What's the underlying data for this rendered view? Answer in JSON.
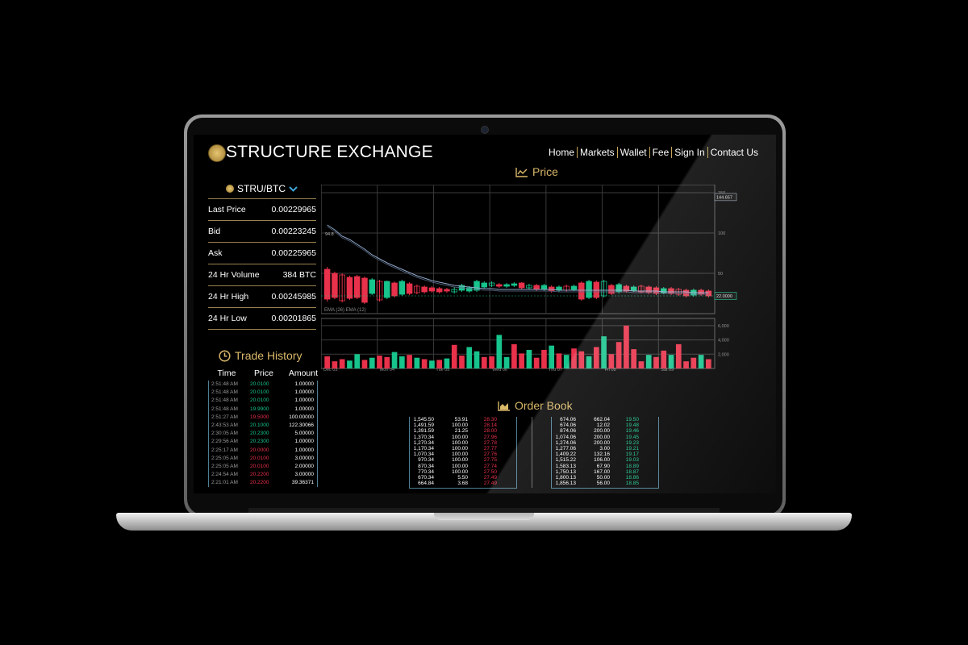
{
  "header": {
    "brand": "STRUCTURE EXCHANGE",
    "nav": [
      "Home",
      "Markets",
      "Wallet",
      "Fee",
      "Sign In",
      "Contact Us"
    ]
  },
  "pair": {
    "label": "STRU/BTC"
  },
  "stats": [
    {
      "label": "Last Price",
      "value": "0.00229965"
    },
    {
      "label": "Bid",
      "value": "0.00223245"
    },
    {
      "label": "Ask",
      "value": "0.00225965"
    },
    {
      "label": "24 Hr Volume",
      "value": "384 BTC"
    },
    {
      "label": "24 Hr High",
      "value": "0.00245985"
    },
    {
      "label": "24 Hr Low",
      "value": "0.00201865"
    }
  ],
  "price_title": "Price",
  "trade_history": {
    "title": "Trade History",
    "headers": [
      "Time",
      "Price",
      "Amount"
    ],
    "rows": [
      {
        "time": "2:51:48 AM",
        "price": "20.0100",
        "amount": "1.00000",
        "side": "buy"
      },
      {
        "time": "2:51:48 AM",
        "price": "20.0100",
        "amount": "1.00000",
        "side": "buy"
      },
      {
        "time": "2:51:48 AM",
        "price": "20.0100",
        "amount": "1.00000",
        "side": "buy"
      },
      {
        "time": "2:51:48 AM",
        "price": "19.9900",
        "amount": "1.00000",
        "side": "buy"
      },
      {
        "time": "2:51:27 AM",
        "price": "19.5000",
        "amount": "100.00000",
        "side": "sell"
      },
      {
        "time": "2:43:53 AM",
        "price": "20.1000",
        "amount": "122.30066",
        "side": "buy"
      },
      {
        "time": "2:30:05 AM",
        "price": "20.2300",
        "amount": "5.00000",
        "side": "buy"
      },
      {
        "time": "2:29:56 AM",
        "price": "20.2300",
        "amount": "1.00000",
        "side": "buy"
      },
      {
        "time": "2:25:17 AM",
        "price": "20.0000",
        "amount": "1.00000",
        "side": "sell"
      },
      {
        "time": "2:25:05 AM",
        "price": "20.0100",
        "amount": "3.00000",
        "side": "sell"
      },
      {
        "time": "2:25:05 AM",
        "price": "20.0100",
        "amount": "2.00000",
        "side": "sell"
      },
      {
        "time": "2:24:54 AM",
        "price": "20.2200",
        "amount": "3.00000",
        "side": "sell"
      },
      {
        "time": "2:21:01 AM",
        "price": "20.2200",
        "amount": "39.36371",
        "side": "sell"
      }
    ]
  },
  "order_book": {
    "title": "Order Book",
    "sell": [
      [
        "1,545.50",
        "53.91",
        "28.30"
      ],
      [
        "1,491.59",
        "100.00",
        "28.14"
      ],
      [
        "1,391.59",
        "21.25",
        "28.00"
      ],
      [
        "1,370.34",
        "100.00",
        "27.96"
      ],
      [
        "1,270.34",
        "100.00",
        "27.78"
      ],
      [
        "1,170.34",
        "100.00",
        "27.77"
      ],
      [
        "1,070.34",
        "100.00",
        "27.76"
      ],
      [
        "970.34",
        "100.00",
        "27.75"
      ],
      [
        "870.34",
        "100.00",
        "27.74"
      ],
      [
        "770.34",
        "100.00",
        "27.50"
      ],
      [
        "670.34",
        "5.50",
        "27.49"
      ],
      [
        "664.84",
        "3.68",
        "27.49"
      ]
    ],
    "buy": [
      [
        "674.06",
        "662.04",
        "19.50"
      ],
      [
        "674.06",
        "12.02",
        "19.48"
      ],
      [
        "874.06",
        "200.00",
        "19.46"
      ],
      [
        "1,074.06",
        "200.00",
        "19.45"
      ],
      [
        "1,274.06",
        "200.00",
        "19.23"
      ],
      [
        "1,277.06",
        "3.00",
        "19.21"
      ],
      [
        "1,409.22",
        "132.16",
        "19.17"
      ],
      [
        "1,515.22",
        "106.00",
        "19.03"
      ],
      [
        "1,583.13",
        "67.90",
        "18.89"
      ],
      [
        "1,750.13",
        "167.00",
        "18.87"
      ],
      [
        "1,800.13",
        "50.00",
        "18.86"
      ],
      [
        "1,856.13",
        "56.00",
        "18.85"
      ]
    ]
  },
  "chart_data": {
    "type": "bar",
    "title": "Price",
    "price_axis_ticks": [
      "150",
      "100",
      "50"
    ],
    "price_labels": {
      "last": "144.657",
      "current": "22.0000",
      "ema_start": "94.8"
    },
    "legend": "EMA (26) EMA (12)",
    "volume_axis_ticks": [
      "6,000",
      "4,000",
      "2,000"
    ],
    "x_labels": [
      "Dec 03",
      "Mon 04",
      "Tue 05",
      "Wed 06",
      "Thu 07",
      "Fri 08",
      "Sat 09"
    ],
    "ylim_price": [
      0,
      160
    ],
    "ylim_volume": [
      0,
      7000
    ],
    "candles": [
      {
        "o": 55,
        "c": 18,
        "h": 58,
        "l": 15
      },
      {
        "o": 50,
        "c": 20,
        "h": 52,
        "l": 18
      },
      {
        "o": 48,
        "c": 16,
        "h": 50,
        "l": 14
      },
      {
        "o": 45,
        "c": 19,
        "h": 47,
        "l": 17
      },
      {
        "o": 46,
        "c": 20,
        "h": 48,
        "l": 18
      },
      {
        "o": 44,
        "c": 14,
        "h": 46,
        "l": 12
      },
      {
        "o": 25,
        "c": 42,
        "h": 44,
        "l": 23
      },
      {
        "o": 40,
        "c": 17,
        "h": 42,
        "l": 15
      },
      {
        "o": 20,
        "c": 40,
        "h": 41,
        "l": 18
      },
      {
        "o": 38,
        "c": 22,
        "h": 40,
        "l": 20
      },
      {
        "o": 24,
        "c": 40,
        "h": 42,
        "l": 22
      },
      {
        "o": 37,
        "c": 25,
        "h": 39,
        "l": 23
      },
      {
        "o": 34,
        "c": 26,
        "h": 36,
        "l": 24
      },
      {
        "o": 33,
        "c": 27,
        "h": 35,
        "l": 25
      },
      {
        "o": 32,
        "c": 28,
        "h": 34,
        "l": 26
      },
      {
        "o": 31,
        "c": 27,
        "h": 33,
        "l": 25
      },
      {
        "o": 30,
        "c": 28,
        "h": 32,
        "l": 26
      },
      {
        "o": 27,
        "c": 30,
        "h": 33,
        "l": 25
      },
      {
        "o": 29,
        "c": 35,
        "h": 37,
        "l": 27
      },
      {
        "o": 28,
        "c": 32,
        "h": 34,
        "l": 26
      },
      {
        "o": 29,
        "c": 40,
        "h": 42,
        "l": 27
      },
      {
        "o": 33,
        "c": 38,
        "h": 40,
        "l": 31
      },
      {
        "o": 35,
        "c": 38,
        "h": 40,
        "l": 33
      },
      {
        "o": 36,
        "c": 34,
        "h": 38,
        "l": 32
      },
      {
        "o": 34,
        "c": 36,
        "h": 38,
        "l": 32
      },
      {
        "o": 35,
        "c": 37,
        "h": 39,
        "l": 33
      },
      {
        "o": 38,
        "c": 32,
        "h": 39,
        "l": 30
      },
      {
        "o": 32,
        "c": 35,
        "h": 37,
        "l": 30
      },
      {
        "o": 35,
        "c": 30,
        "h": 37,
        "l": 28
      },
      {
        "o": 30,
        "c": 35,
        "h": 37,
        "l": 28
      },
      {
        "o": 33,
        "c": 28,
        "h": 35,
        "l": 26
      },
      {
        "o": 29,
        "c": 33,
        "h": 35,
        "l": 27
      },
      {
        "o": 34,
        "c": 29,
        "h": 36,
        "l": 27
      },
      {
        "o": 30,
        "c": 34,
        "h": 36,
        "l": 28
      },
      {
        "o": 38,
        "c": 18,
        "h": 40,
        "l": 16
      },
      {
        "o": 20,
        "c": 40,
        "h": 42,
        "l": 18
      },
      {
        "o": 39,
        "c": 20,
        "h": 41,
        "l": 18
      },
      {
        "o": 22,
        "c": 40,
        "h": 42,
        "l": 20
      },
      {
        "o": 35,
        "c": 25,
        "h": 37,
        "l": 23
      },
      {
        "o": 27,
        "c": 36,
        "h": 38,
        "l": 25
      },
      {
        "o": 34,
        "c": 28,
        "h": 36,
        "l": 26
      },
      {
        "o": 29,
        "c": 33,
        "h": 35,
        "l": 27
      },
      {
        "o": 34,
        "c": 27,
        "h": 36,
        "l": 25
      },
      {
        "o": 33,
        "c": 26,
        "h": 35,
        "l": 24
      },
      {
        "o": 32,
        "c": 25,
        "h": 34,
        "l": 23
      },
      {
        "o": 26,
        "c": 31,
        "h": 33,
        "l": 24
      },
      {
        "o": 31,
        "c": 25,
        "h": 33,
        "l": 23
      },
      {
        "o": 30,
        "c": 24,
        "h": 32,
        "l": 22
      },
      {
        "o": 29,
        "c": 22,
        "h": 31,
        "l": 20
      },
      {
        "o": 23,
        "c": 29,
        "h": 31,
        "l": 21
      },
      {
        "o": 29,
        "c": 24,
        "h": 31,
        "l": 22
      },
      {
        "o": 28,
        "c": 22,
        "h": 30,
        "l": 20
      }
    ],
    "ema": [
      110,
      104,
      96,
      92,
      86,
      80,
      73,
      68,
      63,
      59,
      55,
      51,
      47,
      44,
      41,
      39,
      37,
      35,
      34,
      33,
      32,
      31,
      31,
      30,
      30,
      30,
      30,
      30,
      30,
      30,
      30,
      29,
      29,
      29,
      29,
      29,
      29,
      29,
      29,
      29,
      29,
      28,
      28,
      28,
      28,
      27,
      27,
      27,
      27,
      26,
      26,
      26
    ],
    "volume": [
      {
        "v": 1700,
        "up": false
      },
      {
        "v": 1000,
        "up": false
      },
      {
        "v": 1300,
        "up": false
      },
      {
        "v": 1100,
        "up": true
      },
      {
        "v": 2000,
        "up": true
      },
      {
        "v": 1200,
        "up": false
      },
      {
        "v": 1500,
        "up": true
      },
      {
        "v": 1800,
        "up": false
      },
      {
        "v": 1600,
        "up": false
      },
      {
        "v": 2300,
        "up": true
      },
      {
        "v": 1700,
        "up": true
      },
      {
        "v": 1900,
        "up": false
      },
      {
        "v": 1500,
        "up": true
      },
      {
        "v": 1300,
        "up": false
      },
      {
        "v": 1100,
        "up": true
      },
      {
        "v": 1200,
        "up": false
      },
      {
        "v": 1400,
        "up": true
      },
      {
        "v": 3300,
        "up": false
      },
      {
        "v": 1800,
        "up": false
      },
      {
        "v": 3000,
        "up": true
      },
      {
        "v": 2400,
        "up": true
      },
      {
        "v": 1600,
        "up": false
      },
      {
        "v": 1700,
        "up": false
      },
      {
        "v": 4700,
        "up": true
      },
      {
        "v": 1600,
        "up": true
      },
      {
        "v": 3400,
        "up": false
      },
      {
        "v": 2100,
        "up": false
      },
      {
        "v": 2600,
        "up": true
      },
      {
        "v": 1500,
        "up": false
      },
      {
        "v": 2600,
        "up": false
      },
      {
        "v": 3200,
        "up": true
      },
      {
        "v": 2100,
        "up": false
      },
      {
        "v": 1900,
        "up": true
      },
      {
        "v": 2800,
        "up": false
      },
      {
        "v": 2400,
        "up": false
      },
      {
        "v": 1700,
        "up": true
      },
      {
        "v": 3000,
        "up": false
      },
      {
        "v": 4500,
        "up": true
      },
      {
        "v": 2000,
        "up": false
      },
      {
        "v": 3700,
        "up": false
      },
      {
        "v": 6000,
        "up": false
      },
      {
        "v": 2700,
        "up": false
      },
      {
        "v": 1000,
        "up": false
      },
      {
        "v": 1900,
        "up": true
      },
      {
        "v": 1600,
        "up": false
      },
      {
        "v": 2500,
        "up": false
      },
      {
        "v": 1900,
        "up": true
      },
      {
        "v": 3400,
        "up": false
      },
      {
        "v": 1000,
        "up": false
      },
      {
        "v": 1500,
        "up": false
      },
      {
        "v": 1900,
        "up": true
      },
      {
        "v": 1300,
        "up": false
      }
    ]
  },
  "colors": {
    "up": "#17c48c",
    "down": "#e8314a",
    "gold": "#d9b869",
    "frame": "#4d7f93"
  }
}
